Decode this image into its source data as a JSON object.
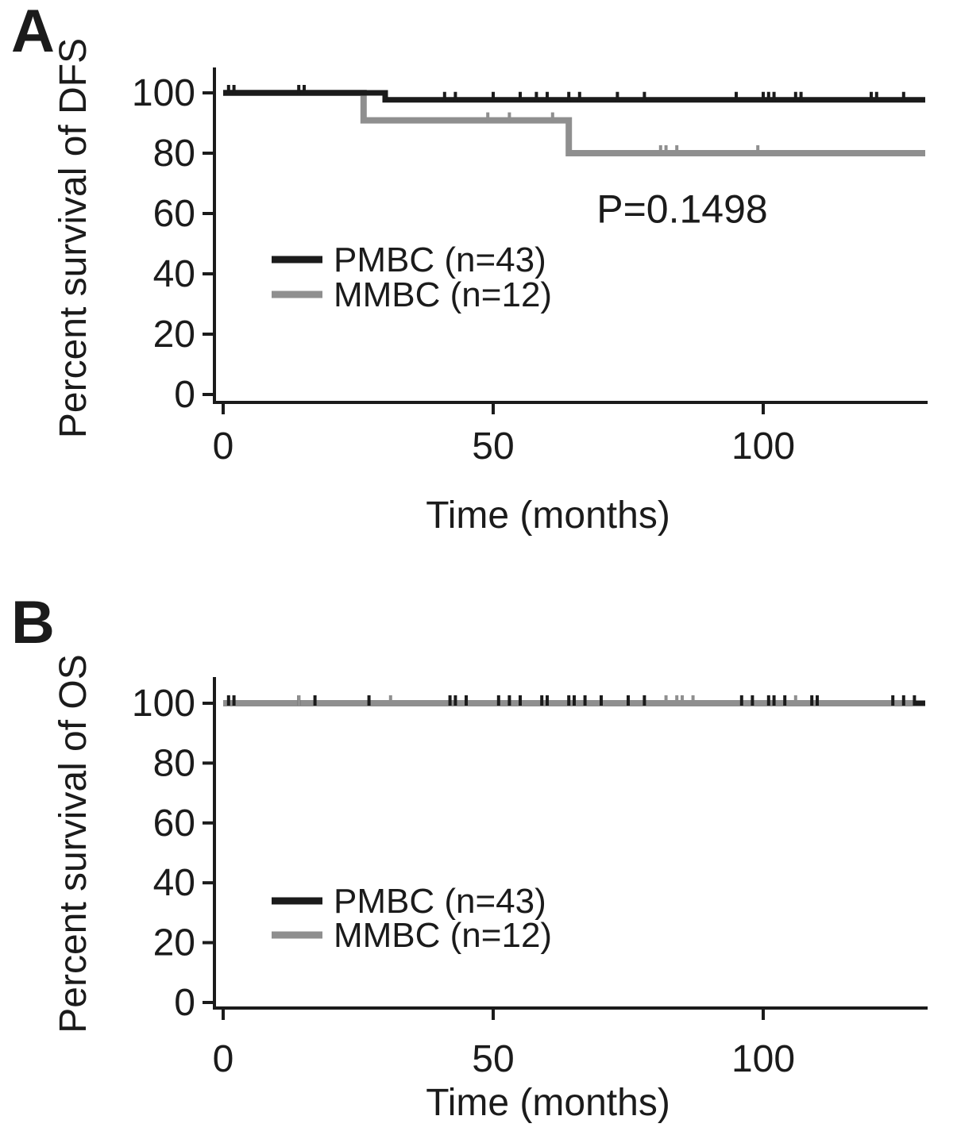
{
  "figure": {
    "panels": [
      {
        "label": "A"
      },
      {
        "label": "B"
      }
    ]
  },
  "chart_data": [
    {
      "panel": "A",
      "type": "line",
      "variant": "kaplan-meier-step",
      "title": "",
      "xlabel": "Time (months)",
      "ylabel": "Percent survival of DFS",
      "xlim": [
        0,
        130
      ],
      "ylim": [
        0,
        100
      ],
      "xticks": [
        0,
        50,
        100
      ],
      "yticks": [
        0,
        20,
        40,
        60,
        80,
        100
      ],
      "grid": false,
      "legend_position": "center-left",
      "annotation": {
        "text": "P=0.1498",
        "x": 85,
        "y": 57
      },
      "legend": [
        {
          "label": "PMBC (n=43)",
          "color": "#1b1b1b"
        },
        {
          "label": "MMBC (n=12)",
          "color": "#8f8f8f"
        }
      ],
      "series": [
        {
          "name": "PMBC (n=43)",
          "color": "#1b1b1b",
          "points": [
            [
              0,
              100
            ],
            [
              30,
              100
            ],
            [
              30,
              97.7
            ],
            [
              130,
              97.7
            ]
          ],
          "censor_marks": [
            [
              1,
              100
            ],
            [
              2,
              100
            ],
            [
              14,
              100
            ],
            [
              15,
              100
            ],
            [
              41,
              97.7
            ],
            [
              43,
              97.7
            ],
            [
              50,
              97.7
            ],
            [
              55,
              97.7
            ],
            [
              58,
              97.7
            ],
            [
              60,
              97.7
            ],
            [
              64,
              97.7
            ],
            [
              66,
              97.7
            ],
            [
              73,
              97.7
            ],
            [
              78,
              97.7
            ],
            [
              95,
              97.7
            ],
            [
              100,
              97.7
            ],
            [
              101,
              97.7
            ],
            [
              102,
              97.7
            ],
            [
              106,
              97.7
            ],
            [
              107,
              97.7
            ],
            [
              120,
              97.7
            ],
            [
              121,
              97.7
            ],
            [
              126,
              97.7
            ]
          ]
        },
        {
          "name": "MMBC (n=12)",
          "color": "#8f8f8f",
          "points": [
            [
              0,
              100
            ],
            [
              26,
              100
            ],
            [
              26,
              90.9
            ],
            [
              64,
              90.9
            ],
            [
              64,
              80
            ],
            [
              130,
              80
            ]
          ],
          "censor_marks": [
            [
              15,
              100
            ],
            [
              49,
              90.9
            ],
            [
              53,
              90.9
            ],
            [
              61,
              90.9
            ],
            [
              81,
              80
            ],
            [
              82,
              80
            ],
            [
              84,
              80
            ],
            [
              99,
              80
            ]
          ]
        }
      ]
    },
    {
      "panel": "B",
      "type": "line",
      "variant": "kaplan-meier-step",
      "title": "",
      "xlabel": "Time (months)",
      "ylabel": "Percent survival of OS",
      "xlim": [
        0,
        130
      ],
      "ylim": [
        0,
        100
      ],
      "xticks": [
        0,
        50,
        100
      ],
      "yticks": [
        0,
        20,
        40,
        60,
        80,
        100
      ],
      "grid": false,
      "legend_position": "center-left",
      "annotation": null,
      "legend": [
        {
          "label": "PMBC (n=43)",
          "color": "#1b1b1b"
        },
        {
          "label": "MMBC (n=12)",
          "color": "#8f8f8f"
        }
      ],
      "series": [
        {
          "name": "PMBC (n=43)",
          "color": "#1b1b1b",
          "points": [
            [
              0,
              100
            ],
            [
              130,
              100
            ]
          ],
          "censor_marks": [
            [
              1,
              100
            ],
            [
              2,
              100
            ],
            [
              14,
              100
            ],
            [
              17,
              100
            ],
            [
              27,
              100
            ],
            [
              42,
              100
            ],
            [
              43,
              100
            ],
            [
              45,
              100
            ],
            [
              51,
              100
            ],
            [
              53,
              100
            ],
            [
              55,
              100
            ],
            [
              59,
              100
            ],
            [
              60,
              100
            ],
            [
              64,
              100
            ],
            [
              65,
              100
            ],
            [
              67,
              100
            ],
            [
              70,
              100
            ],
            [
              75,
              100
            ],
            [
              78,
              100
            ],
            [
              96,
              100
            ],
            [
              98,
              100
            ],
            [
              101,
              100
            ],
            [
              102,
              100
            ],
            [
              104,
              100
            ],
            [
              109,
              100
            ],
            [
              110,
              100
            ],
            [
              124,
              100
            ],
            [
              126,
              100
            ],
            [
              128,
              100
            ]
          ]
        },
        {
          "name": "MMBC (n=12)",
          "color": "#8f8f8f",
          "points": [
            [
              0,
              100
            ],
            [
              128,
              100
            ]
          ],
          "censor_marks": [
            [
              14,
              100
            ],
            [
              31,
              100
            ],
            [
              82,
              100
            ],
            [
              84,
              100
            ],
            [
              85,
              100
            ],
            [
              87,
              100
            ],
            [
              106,
              100
            ]
          ]
        }
      ]
    }
  ]
}
